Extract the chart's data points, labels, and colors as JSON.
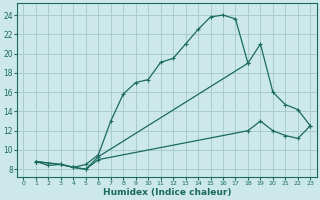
{
  "xlabel": "Humidex (Indice chaleur)",
  "bg_color": "#cce8e8",
  "grid_color": "#aacccc",
  "line_color": "#1a6a60",
  "xlim": [
    -0.5,
    23.5
  ],
  "ylim": [
    7.2,
    25.2
  ],
  "xticks": [
    0,
    1,
    2,
    3,
    4,
    5,
    6,
    7,
    8,
    9,
    10,
    11,
    12,
    13,
    14,
    15,
    16,
    17,
    18,
    19,
    20,
    21,
    22,
    23
  ],
  "yticks": [
    8,
    10,
    12,
    14,
    16,
    18,
    20,
    22,
    24
  ],
  "curve1_x": [
    1,
    2,
    3,
    4,
    5,
    6,
    7,
    8,
    9,
    10,
    11,
    12,
    13,
    14,
    15,
    16,
    17,
    18
  ],
  "curve1_y": [
    8.8,
    8.4,
    8.5,
    8.2,
    8.5,
    9.5,
    13.0,
    15.8,
    17.0,
    17.3,
    19.1,
    19.5,
    21.0,
    22.5,
    23.8,
    24.0,
    23.6,
    19.0
  ],
  "curve2_x": [
    1,
    3,
    4,
    5,
    6,
    18,
    19,
    20,
    21,
    22,
    23
  ],
  "curve2_y": [
    8.8,
    8.5,
    8.2,
    8.0,
    9.3,
    19.0,
    21.0,
    16.0,
    14.7,
    14.2,
    12.5
  ],
  "curve3_x": [
    1,
    3,
    4,
    5,
    6,
    18,
    19,
    20,
    21,
    22,
    23
  ],
  "curve3_y": [
    8.8,
    8.5,
    8.2,
    8.0,
    9.0,
    12.0,
    13.0,
    12.0,
    11.5,
    11.2,
    12.5
  ]
}
